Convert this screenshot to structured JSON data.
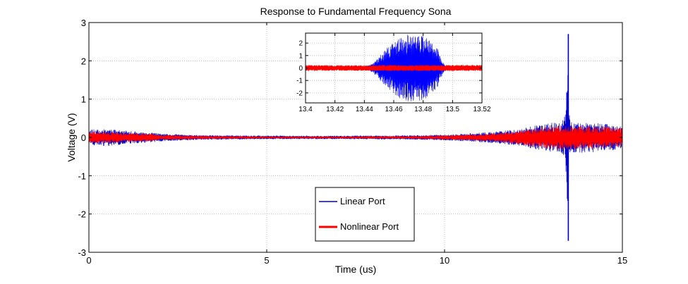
{
  "chart_data": [
    {
      "type": "line",
      "title": "Response to Fundamental Frequency Sona",
      "xlabel": "Time (us)",
      "ylabel": "Voltage (V)",
      "xlim": [
        0,
        15
      ],
      "ylim": [
        -3,
        3
      ],
      "xticks": [
        "0",
        "5",
        "10",
        "15"
      ],
      "yticks": [
        "-3",
        "-2",
        "-1",
        "0",
        "1",
        "2",
        "3"
      ],
      "grid": true,
      "legend": {
        "position": "bottom-center",
        "entries": [
          "Linear Port",
          "Nonlinear Port"
        ]
      },
      "series": [
        {
          "name": "Linear Port",
          "color": "#0000cc",
          "envelope": {
            "x": [
              0,
              0.5,
              1,
              1.8,
              2,
              3,
              5,
              7,
              9,
              10,
              11,
              12,
              12.5,
              13,
              13.3,
              13.4,
              13.45,
              13.5,
              13.6,
              14,
              14.5,
              15
            ],
            "amp": [
              0.2,
              0.22,
              0.18,
              0.12,
              0.1,
              0.06,
              0.04,
              0.04,
              0.05,
              0.07,
              0.12,
              0.2,
              0.3,
              0.38,
              0.4,
              0.6,
              2.7,
              0.6,
              0.4,
              0.4,
              0.35,
              0.3
            ]
          },
          "peak": {
            "x": 13.48,
            "ymax": 2.7,
            "ymin": -2.7
          }
        },
        {
          "name": "Nonlinear Port",
          "color": "#ff0000",
          "envelope": {
            "x": [
              0,
              0.5,
              1,
              1.8,
              2,
              3,
              5,
              7,
              9,
              10,
              11,
              12,
              12.5,
              13,
              13.3,
              13.4,
              13.45,
              13.5,
              13.6,
              14,
              14.5,
              15
            ],
            "amp": [
              0.15,
              0.15,
              0.12,
              0.1,
              0.06,
              0.04,
              0.02,
              0.02,
              0.03,
              0.05,
              0.08,
              0.16,
              0.24,
              0.32,
              0.32,
              0.3,
              0.3,
              0.3,
              0.3,
              0.3,
              0.28,
              0.25
            ]
          }
        }
      ]
    },
    {
      "type": "line",
      "title": "",
      "xlim": [
        13.4,
        13.52
      ],
      "ylim": [
        -2.8,
        2.8
      ],
      "xticks": [
        "13.4",
        "13.42",
        "13.44",
        "13.46",
        "13.48",
        "13.5",
        "13.52"
      ],
      "yticks": [
        "-2",
        "-1",
        "0",
        "1",
        "2"
      ],
      "grid": true,
      "series": [
        {
          "name": "Linear Port",
          "color": "#0000ff",
          "envelope": {
            "x": [
              13.4,
              13.42,
              13.44,
              13.445,
              13.45,
              13.455,
              13.46,
              13.465,
              13.47,
              13.475,
              13.48,
              13.485,
              13.49,
              13.492,
              13.495,
              13.52
            ],
            "amp": [
              0.12,
              0.1,
              0.1,
              0.3,
              0.9,
              1.6,
              2.1,
              2.5,
              2.7,
              2.75,
              2.6,
              2.2,
              1.5,
              0.8,
              0.15,
              0.1
            ]
          }
        },
        {
          "name": "Nonlinear Port",
          "color": "#ff0000",
          "envelope": {
            "x": [
              13.4,
              13.42,
              13.44,
              13.46,
              13.48,
              13.5,
              13.52
            ],
            "amp": [
              0.22,
              0.2,
              0.2,
              0.22,
              0.22,
              0.22,
              0.22
            ]
          }
        }
      ]
    }
  ]
}
